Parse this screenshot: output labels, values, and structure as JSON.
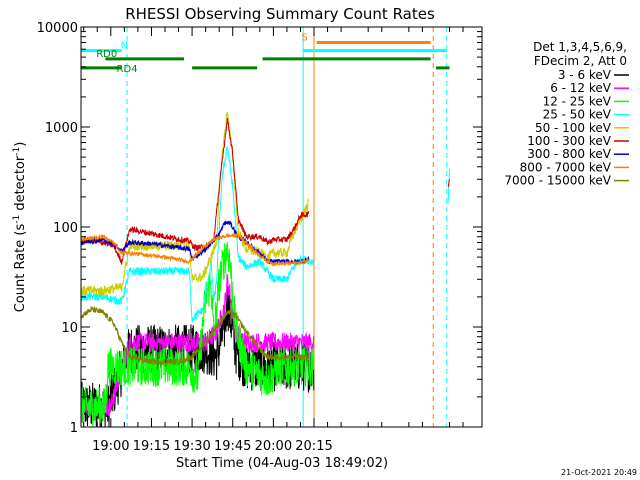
{
  "chart_data": {
    "type": "line",
    "title": "RHESSI Observing Summary Count Rates",
    "xlabel": "Start Time (04-Aug-03 18:49:02)",
    "ylabel": "Count Rate (s",
    "ylabel_sup": "-1",
    "ylabel_tail": " detector",
    "ylabel_tail_sup": "-1",
    "ylabel_close": ")",
    "yscale": "log",
    "ylim": [
      1,
      10000
    ],
    "xlim_min": [
      -11,
      137
    ],
    "y_ticks": [
      {
        "value": 1,
        "label": "1"
      },
      {
        "value": 10,
        "label": "10"
      },
      {
        "value": 100,
        "label": "100"
      },
      {
        "value": 1000,
        "label": "1000"
      },
      {
        "value": 10000,
        "label": "10000"
      }
    ],
    "x_ticks": [
      {
        "value": 0,
        "label": "19:00"
      },
      {
        "value": 15,
        "label": "19:15"
      },
      {
        "value": 30,
        "label": "19:30"
      },
      {
        "value": 45,
        "label": "19:45"
      },
      {
        "value": 60,
        "label": "20:00"
      },
      {
        "value": 75,
        "label": "20:15"
      }
    ],
    "legend_header": [
      "Det 1,3,4,5,6,9,",
      "FDecim 2, Att 0"
    ],
    "footer_date": "21-Oct-2021 20:49",
    "series": [
      {
        "name": "3 - 6 keV",
        "color": "#000000",
        "noise": 0.5,
        "points": [
          [
            -11,
            1.6
          ],
          [
            -1,
            1.6
          ],
          [
            7,
            6
          ],
          [
            29,
            6
          ],
          [
            35,
            6
          ],
          [
            39,
            5
          ],
          [
            42,
            10
          ],
          [
            43,
            18
          ],
          [
            44,
            13
          ],
          [
            46,
            6
          ],
          [
            50,
            4
          ],
          [
            58,
            4
          ],
          [
            60,
            4
          ],
          [
            70,
            4
          ],
          [
            75,
            4
          ]
        ]
      },
      {
        "name": "6 - 12 keV",
        "color": "#ff00ff",
        "noise": 0.2,
        "points": [
          [
            -11,
            1.6
          ],
          [
            0,
            1.6
          ],
          [
            7,
            7
          ],
          [
            29,
            7
          ],
          [
            35,
            7
          ],
          [
            39,
            9
          ],
          [
            42,
            16
          ],
          [
            43,
            30
          ],
          [
            44,
            22
          ],
          [
            46,
            9
          ],
          [
            50,
            7
          ],
          [
            58,
            7
          ],
          [
            70,
            7
          ],
          [
            75,
            7
          ]
        ]
      },
      {
        "name": "12 - 25 keV",
        "color": "#00ff00",
        "noise": 0.4,
        "points": [
          [
            -11,
            1.6
          ],
          [
            -2,
            1.6
          ],
          [
            -1,
            4
          ],
          [
            7,
            4
          ],
          [
            29,
            4
          ],
          [
            32,
            3
          ],
          [
            35,
            20
          ],
          [
            37,
            28
          ],
          [
            38,
            8
          ],
          [
            40,
            28
          ],
          [
            42,
            50
          ],
          [
            43,
            60
          ],
          [
            44,
            45
          ],
          [
            46,
            10
          ],
          [
            50,
            4
          ],
          [
            58,
            3
          ],
          [
            62,
            4
          ],
          [
            70,
            4
          ],
          [
            75,
            4
          ]
        ]
      },
      {
        "name": "25 - 50 keV",
        "color": "#00ffff",
        "noise": 0.08,
        "points": [
          [
            -11,
            20
          ],
          [
            -3,
            20
          ],
          [
            4,
            18
          ],
          [
            7,
            36
          ],
          [
            29,
            36
          ],
          [
            30,
            12
          ],
          [
            34,
            15
          ],
          [
            36,
            30
          ],
          [
            37,
            45
          ],
          [
            38,
            18
          ],
          [
            39,
            28
          ],
          [
            41,
            300
          ],
          [
            43,
            650
          ],
          [
            45,
            250
          ],
          [
            47,
            50
          ],
          [
            50,
            40
          ],
          [
            55,
            45
          ],
          [
            58,
            35
          ],
          [
            60,
            30
          ],
          [
            65,
            30
          ],
          [
            67,
            38
          ],
          [
            70,
            48
          ],
          [
            75,
            45
          ]
        ]
      },
      {
        "name": "50 - 100 keV",
        "color": "#cccc00",
        "noise": 0.1,
        "points": [
          [
            -11,
            23
          ],
          [
            -3,
            23
          ],
          [
            4,
            25
          ],
          [
            7,
            65
          ],
          [
            29,
            65
          ],
          [
            30,
            30
          ],
          [
            34,
            32
          ],
          [
            37,
            50
          ],
          [
            39,
            70
          ],
          [
            41,
            500
          ],
          [
            43,
            1450
          ],
          [
            45,
            500
          ],
          [
            47,
            90
          ],
          [
            50,
            60
          ],
          [
            55,
            55
          ],
          [
            58,
            50
          ],
          [
            60,
            55
          ],
          [
            65,
            55
          ],
          [
            67,
            80
          ],
          [
            70,
            120
          ],
          [
            73,
            170
          ]
        ]
      },
      {
        "name": "100 - 300 keV",
        "color": "#cc0000",
        "noise": 0.06,
        "points": [
          [
            -11,
            75
          ],
          [
            -3,
            70
          ],
          [
            1,
            65
          ],
          [
            4,
            45
          ],
          [
            7,
            95
          ],
          [
            29,
            72
          ],
          [
            31,
            62
          ],
          [
            35,
            63
          ],
          [
            38,
            75
          ],
          [
            40,
            250
          ],
          [
            43,
            1200
          ],
          [
            45,
            550
          ],
          [
            47,
            120
          ],
          [
            50,
            80
          ],
          [
            55,
            80
          ],
          [
            58,
            70
          ],
          [
            60,
            75
          ],
          [
            65,
            75
          ],
          [
            68,
            100
          ],
          [
            70,
            130
          ],
          [
            73,
            135
          ]
        ]
      },
      {
        "name": "300 - 800 keV",
        "color": "#0000cc",
        "noise": 0.05,
        "points": [
          [
            -11,
            70
          ],
          [
            -3,
            75
          ],
          [
            1,
            68
          ],
          [
            4,
            58
          ],
          [
            7,
            70
          ],
          [
            15,
            68
          ],
          [
            29,
            60
          ],
          [
            30,
            48
          ],
          [
            35,
            60
          ],
          [
            40,
            85
          ],
          [
            42,
            110
          ],
          [
            44,
            110
          ],
          [
            47,
            80
          ],
          [
            50,
            70
          ],
          [
            55,
            55
          ],
          [
            58,
            45
          ],
          [
            60,
            45
          ],
          [
            65,
            45
          ],
          [
            70,
            45
          ],
          [
            73,
            48
          ]
        ]
      },
      {
        "name": "800 - 7000 keV",
        "color": "#ff8000",
        "noise": 0.04,
        "points": [
          [
            -11,
            75
          ],
          [
            -3,
            80
          ],
          [
            1,
            70
          ],
          [
            4,
            55
          ],
          [
            7,
            55
          ],
          [
            20,
            50
          ],
          [
            29,
            45
          ],
          [
            33,
            58
          ],
          [
            38,
            75
          ],
          [
            43,
            82
          ],
          [
            47,
            82
          ],
          [
            50,
            70
          ],
          [
            55,
            52
          ],
          [
            58,
            45
          ],
          [
            60,
            43
          ],
          [
            65,
            43
          ],
          [
            70,
            44
          ],
          [
            73,
            47
          ]
        ]
      },
      {
        "name": "7000 - 15000 keV",
        "color": "#808000",
        "noise": 0.06,
        "points": [
          [
            -11,
            13
          ],
          [
            -7,
            15
          ],
          [
            -3,
            14
          ],
          [
            1,
            11
          ],
          [
            4,
            7
          ],
          [
            7,
            5
          ],
          [
            15,
            4.5
          ],
          [
            25,
            4.5
          ],
          [
            30,
            5
          ],
          [
            35,
            7
          ],
          [
            40,
            11
          ],
          [
            43,
            14
          ],
          [
            46,
            13
          ],
          [
            50,
            9
          ],
          [
            55,
            6
          ],
          [
            58,
            5
          ],
          [
            60,
            5
          ],
          [
            65,
            5
          ],
          [
            70,
            5
          ],
          [
            73,
            5
          ]
        ]
      }
    ],
    "tail_series": [
      {
        "color": "#00ffff",
        "points": [
          [
            124.5,
            170
          ],
          [
            125,
            380
          ]
        ]
      },
      {
        "color": "#cc0000",
        "points": [
          [
            124.5,
            250
          ],
          [
            125,
            300
          ]
        ]
      }
    ],
    "state_bars": [
      {
        "color": "#00ffff",
        "y": 5800,
        "segments": [
          [
            -11,
            4
          ],
          [
            71,
            124
          ]
        ],
        "label": "N",
        "label_x": 5
      },
      {
        "color": "#008000",
        "y": 4800,
        "segments": [
          [
            -2,
            27
          ],
          [
            56,
            118
          ]
        ],
        "label": "RD0",
        "label_x": -1.5
      },
      {
        "color": "#008000",
        "y": 3900,
        "segments": [
          [
            -11,
            4
          ],
          [
            30,
            54
          ],
          [
            120,
            125
          ]
        ],
        "label": "RD4",
        "label_x": 6
      },
      {
        "color": "#ff8000",
        "y": 7000,
        "segments": [
          [
            76,
            118
          ]
        ],
        "label": "S",
        "label_x": 71.5
      }
    ],
    "vlines": [
      {
        "x": 6,
        "color": "#00ffff",
        "dash": "5,4"
      },
      {
        "x": 71,
        "color": "#00ffff",
        "dash": ""
      },
      {
        "x": 75,
        "color": "#ff8000",
        "dash": ""
      },
      {
        "x": 119,
        "color": "#ff8000",
        "dash": "5,4"
      },
      {
        "x": 124,
        "color": "#00ffff",
        "dash": "5,4"
      },
      {
        "x": -11,
        "color": "#00ffff",
        "dash": ""
      }
    ]
  }
}
